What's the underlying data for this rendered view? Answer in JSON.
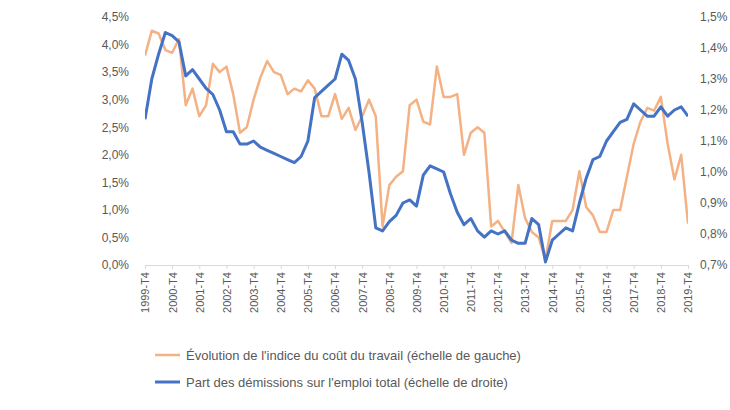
{
  "chart_data": {
    "type": "line",
    "categories": [
      "1999-T4",
      null,
      null,
      null,
      "2000-T4",
      null,
      null,
      null,
      "2001-T4",
      null,
      null,
      null,
      "2002-T4",
      null,
      null,
      null,
      "2003-T4",
      null,
      null,
      null,
      "2004-T4",
      null,
      null,
      null,
      "2005-T4",
      null,
      null,
      null,
      "2006-T4",
      null,
      null,
      null,
      "2007-T4",
      null,
      null,
      null,
      "2008-T4",
      null,
      null,
      null,
      "2009-T4",
      null,
      null,
      null,
      "2010-T4",
      null,
      null,
      null,
      "2011-T4",
      null,
      null,
      null,
      "2012-T4",
      null,
      null,
      null,
      "2013-T4",
      null,
      null,
      null,
      "2014-T4",
      null,
      null,
      null,
      "2015-T4",
      null,
      null,
      null,
      "2016-T4",
      null,
      null,
      null,
      "2017-T4",
      null,
      null,
      null,
      "2018-T4",
      null,
      null,
      null,
      "2019-T4"
    ],
    "series": [
      {
        "name": "Évolution de l'indice du coût du travail (échelle de gauche)",
        "color": "#F4B183",
        "values": [
          3.8,
          4.25,
          4.2,
          3.9,
          3.85,
          4.1,
          2.9,
          3.2,
          2.7,
          2.9,
          3.65,
          3.5,
          3.6,
          3.1,
          2.4,
          2.5,
          3.0,
          3.4,
          3.7,
          3.5,
          3.45,
          3.1,
          3.2,
          3.15,
          3.35,
          3.2,
          2.7,
          2.7,
          3.1,
          2.65,
          2.85,
          2.45,
          2.7,
          3.0,
          2.7,
          0.7,
          1.45,
          1.6,
          1.7,
          2.9,
          3.0,
          2.6,
          2.55,
          3.6,
          3.05,
          3.05,
          3.1,
          2.0,
          2.4,
          2.5,
          2.4,
          0.7,
          0.8,
          0.6,
          0.4,
          1.45,
          0.85,
          0.6,
          0.5,
          0.1,
          0.8,
          0.8,
          0.8,
          1.0,
          1.7,
          1.05,
          0.9,
          0.6,
          0.6,
          1.0,
          1.0,
          1.6,
          2.2,
          2.6,
          2.85,
          2.8,
          3.05,
          2.2,
          1.55,
          2.0,
          0.75
        ]
      },
      {
        "name": "Part des démissions sur l'emploi total (échelle de droite)",
        "color": "#4472C4",
        "axis": "y2",
        "values": [
          1.17,
          1.3,
          1.38,
          1.45,
          1.44,
          1.42,
          1.31,
          1.33,
          1.3,
          1.27,
          1.25,
          1.2,
          1.13,
          1.13,
          1.09,
          1.09,
          1.1,
          1.08,
          1.07,
          1.06,
          1.05,
          1.04,
          1.03,
          1.05,
          1.1,
          1.24,
          1.26,
          1.28,
          1.3,
          1.38,
          1.36,
          1.3,
          1.16,
          1.0,
          0.82,
          0.81,
          0.84,
          0.86,
          0.9,
          0.91,
          0.89,
          0.99,
          1.02,
          1.01,
          1.0,
          0.93,
          0.87,
          0.83,
          0.85,
          0.81,
          0.79,
          0.81,
          0.8,
          0.81,
          0.78,
          0.77,
          0.77,
          0.85,
          0.83,
          0.71,
          0.78,
          0.8,
          0.82,
          0.81,
          0.9,
          0.98,
          1.04,
          1.05,
          1.1,
          1.13,
          1.16,
          1.17,
          1.22,
          1.2,
          1.18,
          1.18,
          1.21,
          1.18,
          1.2,
          1.21,
          1.18
        ]
      }
    ],
    "ylim": [
      0,
      4.5
    ],
    "yticks": [
      {
        "value": 0,
        "label": "0,0%"
      },
      {
        "value": 0.5,
        "label": "0,5%"
      },
      {
        "value": 1,
        "label": "1,0%"
      },
      {
        "value": 1.5,
        "label": "1,5%"
      },
      {
        "value": 2,
        "label": "2,0%"
      },
      {
        "value": 2.5,
        "label": "2,5%"
      },
      {
        "value": 3,
        "label": "3,0%"
      },
      {
        "value": 3.5,
        "label": "3,5%"
      },
      {
        "value": 4,
        "label": "4,0%"
      },
      {
        "value": 4.5,
        "label": "4,5%"
      }
    ],
    "y2lim": [
      0.7,
      1.5
    ],
    "y2ticks": [
      {
        "value": 0.7,
        "label": "0,7%"
      },
      {
        "value": 0.8,
        "label": "0,8%"
      },
      {
        "value": 0.9,
        "label": "0,9%"
      },
      {
        "value": 1,
        "label": "1,0%"
      },
      {
        "value": 1.1,
        "label": "1,1%"
      },
      {
        "value": 1.2,
        "label": "1,2%"
      },
      {
        "value": 1.3,
        "label": "1,3%"
      },
      {
        "value": 1.4,
        "label": "1,4%"
      },
      {
        "value": 1.5,
        "label": "1,5%"
      }
    ],
    "legend": "bottom"
  }
}
